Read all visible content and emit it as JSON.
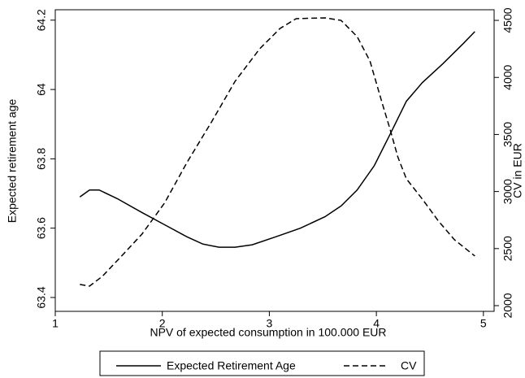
{
  "chart_data": {
    "type": "line",
    "xlabel": "NPV of expected consumption in 100.000 EUR",
    "ylabel": "Expected retirement age",
    "y2label": "CV in EUR",
    "xlim": [
      1,
      5.1
    ],
    "xticks": [
      1,
      2,
      3,
      4,
      5
    ],
    "ylim": [
      63.36,
      64.23
    ],
    "yticks": [
      63.4,
      63.6,
      63.8,
      64,
      64.2
    ],
    "y2lim": [
      1950,
      4593
    ],
    "y2ticks": [
      2000,
      2500,
      3000,
      3500,
      4000,
      4500
    ],
    "legend": "bottom",
    "series": [
      {
        "name": "Expected Retirement Age",
        "color": "#000000",
        "dash": "solid",
        "x": [
          1.23,
          1.32,
          1.41,
          1.58,
          1.81,
          2.02,
          2.23,
          2.38,
          2.53,
          2.68,
          2.84,
          3.06,
          3.29,
          3.52,
          3.67,
          3.82,
          3.98,
          4.13,
          4.28,
          4.43,
          4.62,
          4.81,
          4.92
        ],
        "values": [
          63.69,
          63.71,
          63.71,
          63.685,
          63.645,
          63.61,
          63.575,
          63.554,
          63.545,
          63.545,
          63.552,
          63.575,
          63.6,
          63.633,
          63.664,
          63.71,
          63.78,
          63.872,
          63.966,
          64.02,
          64.074,
          64.132,
          64.167
        ]
      },
      {
        "name": "CV",
        "color": "#000000",
        "dash": "dashed",
        "axis": "y2",
        "x": [
          1.23,
          1.32,
          1.44,
          1.62,
          1.81,
          2.02,
          2.23,
          2.46,
          2.68,
          2.91,
          3.1,
          3.25,
          3.52,
          3.67,
          3.82,
          3.94,
          4.05,
          4.13,
          4.2,
          4.28,
          4.43,
          4.58,
          4.73,
          4.92
        ],
        "values": [
          2186,
          2171,
          2257,
          2435,
          2627,
          2898,
          3254,
          3610,
          3966,
          4251,
          4429,
          4515,
          4522,
          4500,
          4358,
          4144,
          3788,
          3539,
          3304,
          3112,
          2933,
          2741,
          2577,
          2435
        ]
      }
    ]
  }
}
